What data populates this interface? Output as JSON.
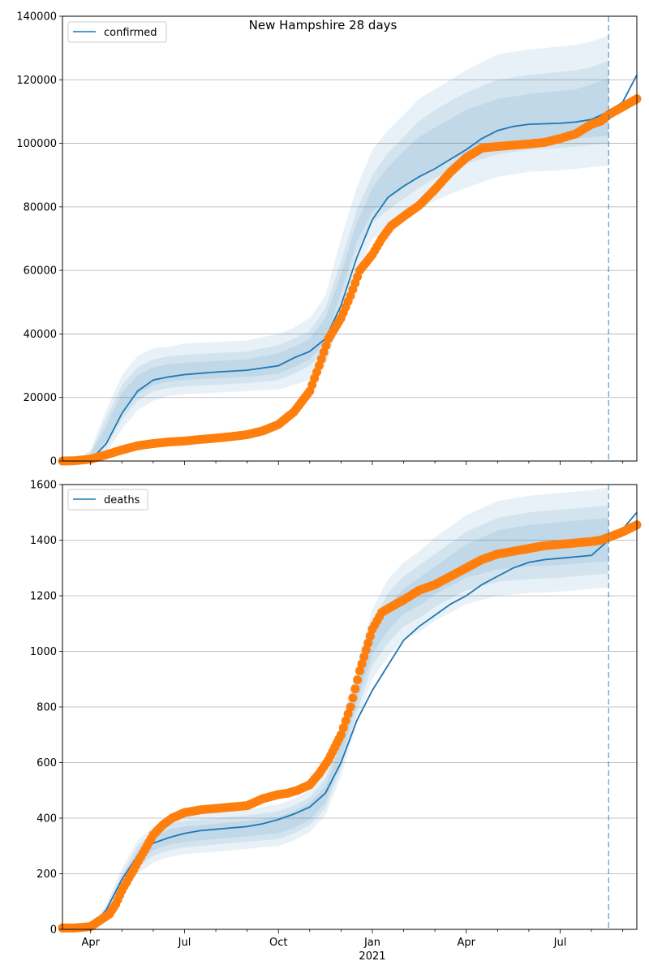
{
  "figure_title": "New Hampshire 28 days",
  "colors": {
    "model": "#1f77b4",
    "observed": "#ff7f0e",
    "band": "#1f77b4",
    "grid": "#b0b0b0",
    "forecast_line": "#1f77b4"
  },
  "x_axis": {
    "ticks": [
      {
        "label": "Apr",
        "x": 1
      },
      {
        "label": "Jul",
        "x": 4
      },
      {
        "label": "Oct",
        "x": 7
      },
      {
        "label": "Jan",
        "x": 10
      },
      {
        "label": "Apr",
        "x": 13
      },
      {
        "label": "Jul",
        "x": 16
      }
    ],
    "year_label": "2021",
    "year_label_x": 10
  },
  "chart_data": [
    {
      "type": "line",
      "legend": [
        "confirmed"
      ],
      "legend_position": "upper-left",
      "xlim": [
        0.1,
        18.45
      ],
      "ylim": [
        0,
        140000
      ],
      "yticks": [
        0,
        20000,
        40000,
        60000,
        80000,
        100000,
        120000,
        140000
      ],
      "grid": "y",
      "forecast_start_x": 17.55,
      "bands": [
        {
          "name": "outer",
          "opacity": 0.1,
          "x": [
            0.1,
            0.5,
            1,
            1.5,
            2,
            2.5,
            3,
            3.5,
            4,
            5,
            6,
            7,
            7.5,
            8,
            8.5,
            9,
            9.5,
            10,
            10.5,
            11,
            11.5,
            12,
            13,
            14,
            15,
            16,
            16.5,
            17,
            17.55
          ],
          "upper": [
            0,
            100,
            3500,
            16000,
            27000,
            33000,
            35500,
            36000,
            37000,
            37500,
            38000,
            40000,
            42000,
            45000,
            52000,
            70000,
            86000,
            98000,
            104000,
            109000,
            114000,
            117000,
            123000,
            128000,
            129500,
            130500,
            131000,
            132000,
            134000
          ],
          "lower": [
            0,
            0,
            0,
            2500,
            10000,
            16000,
            19000,
            20500,
            21000,
            21500,
            22000,
            22500,
            24000,
            25500,
            30000,
            44000,
            59000,
            70000,
            73000,
            76000,
            79000,
            82000,
            86000,
            89500,
            91000,
            91500,
            92000,
            92500,
            93000
          ]
        },
        {
          "name": "middle",
          "opacity": 0.1,
          "x": [
            0.1,
            0.5,
            1,
            1.5,
            2,
            2.5,
            3,
            3.5,
            4,
            5,
            6,
            7,
            7.5,
            8,
            8.5,
            9,
            9.5,
            10,
            10.5,
            11,
            11.5,
            12,
            13,
            14,
            15,
            16,
            16.5,
            17,
            17.55
          ],
          "upper": [
            0,
            50,
            2800,
            13500,
            24000,
            29500,
            32000,
            33000,
            33500,
            34000,
            34500,
            36500,
            38500,
            41000,
            48000,
            63000,
            79000,
            90000,
            97000,
            102000,
            107000,
            110500,
            116000,
            120000,
            121500,
            122500,
            123000,
            124000,
            126000
          ],
          "lower": [
            0,
            0,
            200,
            4500,
            13000,
            19000,
            22000,
            23000,
            23500,
            24000,
            24500,
            25500,
            27500,
            30000,
            35000,
            50000,
            66000,
            75000,
            79000,
            82500,
            86000,
            89000,
            93500,
            96500,
            98000,
            98500,
            99000,
            99500,
            100000
          ]
        },
        {
          "name": "inner",
          "opacity": 0.1,
          "x": [
            0.1,
            0.5,
            1,
            1.5,
            2,
            2.5,
            3,
            3.5,
            4,
            5,
            6,
            7,
            7.5,
            8,
            8.5,
            9,
            9.5,
            10,
            10.5,
            11,
            11.5,
            12,
            13,
            14,
            15,
            16,
            16.5,
            17,
            17.55
          ],
          "upper": [
            0,
            20,
            2200,
            11000,
            21500,
            27000,
            29500,
            30500,
            31000,
            31500,
            32000,
            34000,
            36000,
            38500,
            45000,
            59000,
            75000,
            86000,
            92500,
            97500,
            102000,
            105000,
            110500,
            114000,
            115500,
            116500,
            117000,
            118500,
            120500
          ],
          "lower": [
            0,
            0,
            400,
            6500,
            15500,
            21000,
            24000,
            25000,
            25500,
            26000,
            26500,
            27500,
            29500,
            32000,
            37500,
            53000,
            69000,
            78500,
            82500,
            86000,
            89500,
            92500,
            97000,
            99500,
            100500,
            101000,
            101500,
            102000,
            102500
          ]
        }
      ],
      "series": [
        {
          "name": "confirmed",
          "x": [
            0.1,
            1,
            1.5,
            2,
            2.5,
            3,
            3.5,
            4,
            5,
            6,
            7,
            7.5,
            8,
            8.5,
            9,
            9.5,
            10,
            10.5,
            11,
            11.5,
            12,
            12.5,
            13,
            13.5,
            14,
            14.5,
            15,
            16,
            16.5,
            17,
            17.55,
            18,
            18.45
          ],
          "values": [
            0,
            300,
            5500,
            15000,
            22000,
            25500,
            26500,
            27200,
            28000,
            28600,
            30000,
            32500,
            34500,
            38500,
            49000,
            64000,
            76000,
            83000,
            86500,
            89500,
            92000,
            95000,
            98000,
            101500,
            104000,
            105300,
            106000,
            106300,
            106700,
            107500,
            110000,
            113000,
            121500
          ]
        },
        {
          "name": "observed",
          "x": [
            0.1,
            0.5,
            1,
            1.5,
            2,
            2.5,
            3,
            3.5,
            4,
            4.5,
            5,
            5.5,
            6,
            6.5,
            7,
            7.5,
            8,
            8.3,
            8.6,
            9,
            9.3,
            9.6,
            10,
            10.3,
            10.6,
            11,
            11.5,
            12,
            12.5,
            13,
            13.5,
            14,
            14.5,
            15,
            15.5,
            16,
            16.5,
            17,
            17.3,
            17.55,
            18,
            18.45
          ],
          "values": [
            0,
            100,
            600,
            2000,
            3500,
            4800,
            5500,
            6000,
            6300,
            6800,
            7200,
            7700,
            8300,
            9500,
            11500,
            15500,
            22000,
            30000,
            38500,
            45000,
            52000,
            60000,
            65000,
            70000,
            74000,
            77000,
            80500,
            85500,
            91000,
            95500,
            98500,
            99000,
            99400,
            99800,
            100300,
            101500,
            103000,
            106000,
            107000,
            109000,
            111500,
            114000
          ],
          "marker": "dots"
        }
      ]
    },
    {
      "type": "line",
      "legend": [
        "deaths"
      ],
      "legend_position": "upper-left",
      "xlim": [
        0.1,
        18.45
      ],
      "ylim": [
        0,
        1600
      ],
      "yticks": [
        0,
        200,
        400,
        600,
        800,
        1000,
        1200,
        1400,
        1600
      ],
      "grid": "y",
      "forecast_start_x": 17.55,
      "bands": [
        {
          "name": "outer",
          "opacity": 0.1,
          "x": [
            0.1,
            0.5,
            1,
            1.5,
            2,
            2.5,
            3,
            3.5,
            4,
            5,
            6,
            7,
            7.5,
            8,
            8.5,
            9,
            9.5,
            10,
            10.5,
            11,
            11.5,
            12,
            13,
            14,
            15,
            16,
            16.5,
            17,
            17.55
          ],
          "upper": [
            0,
            2,
            10,
            90,
            220,
            320,
            370,
            400,
            410,
            420,
            430,
            450,
            470,
            500,
            570,
            730,
            950,
            1150,
            1260,
            1320,
            1360,
            1410,
            1490,
            1540,
            1560,
            1570,
            1575,
            1580,
            1590
          ],
          "lower": [
            0,
            0,
            5,
            50,
            140,
            200,
            240,
            260,
            270,
            280,
            290,
            300,
            320,
            350,
            410,
            550,
            740,
            900,
            980,
            1040,
            1070,
            1110,
            1170,
            1200,
            1210,
            1215,
            1220,
            1225,
            1230
          ]
        },
        {
          "name": "middle",
          "opacity": 0.1,
          "x": [
            0.1,
            0.5,
            1,
            1.5,
            2,
            2.5,
            3,
            3.5,
            4,
            5,
            6,
            7,
            7.5,
            8,
            8.5,
            9,
            9.5,
            10,
            10.5,
            11,
            11.5,
            12,
            13,
            14,
            15,
            16,
            16.5,
            17,
            17.55
          ],
          "upper": [
            0,
            1,
            9,
            80,
            200,
            300,
            350,
            380,
            390,
            400,
            410,
            425,
            445,
            475,
            540,
            700,
            910,
            1100,
            1210,
            1270,
            1310,
            1350,
            1430,
            1480,
            1500,
            1510,
            1515,
            1520,
            1525
          ],
          "lower": [
            0,
            0,
            6,
            60,
            160,
            225,
            265,
            285,
            295,
            305,
            315,
            325,
            345,
            375,
            435,
            580,
            780,
            950,
            1030,
            1090,
            1120,
            1160,
            1220,
            1250,
            1260,
            1265,
            1270,
            1275,
            1280
          ]
        },
        {
          "name": "inner",
          "opacity": 0.1,
          "x": [
            0.1,
            0.5,
            1,
            1.5,
            2,
            2.5,
            3,
            3.5,
            4,
            5,
            6,
            7,
            7.5,
            8,
            8.5,
            9,
            9.5,
            10,
            10.5,
            11,
            11.5,
            12,
            13,
            14,
            15,
            16,
            16.5,
            17,
            17.55
          ],
          "upper": [
            0,
            1,
            8,
            72,
            185,
            280,
            330,
            360,
            370,
            380,
            390,
            405,
            425,
            455,
            515,
            670,
            875,
            1060,
            1165,
            1225,
            1265,
            1305,
            1385,
            1435,
            1455,
            1465,
            1470,
            1475,
            1480
          ],
          "lower": [
            0,
            0,
            7,
            66,
            175,
            245,
            285,
            305,
            315,
            325,
            335,
            345,
            365,
            395,
            455,
            610,
            815,
            990,
            1075,
            1135,
            1165,
            1205,
            1265,
            1295,
            1305,
            1310,
            1315,
            1320,
            1325
          ]
        }
      ],
      "series": [
        {
          "name": "deaths",
          "x": [
            0.1,
            0.5,
            1,
            1.5,
            2,
            2.5,
            3,
            3.5,
            4,
            4.5,
            5,
            5.5,
            6,
            6.5,
            7,
            7.5,
            8,
            8.5,
            9,
            9.5,
            10,
            10.5,
            11,
            11.5,
            12,
            12.5,
            13,
            13.5,
            14,
            14.5,
            15,
            15.5,
            16,
            16.5,
            17,
            17.55,
            18,
            18.45
          ],
          "values": [
            0,
            0,
            5,
            70,
            180,
            265,
            310,
            330,
            345,
            355,
            360,
            365,
            370,
            380,
            395,
            415,
            440,
            490,
            600,
            750,
            860,
            950,
            1040,
            1090,
            1130,
            1170,
            1200,
            1240,
            1270,
            1300,
            1320,
            1330,
            1335,
            1340,
            1345,
            1400,
            1440,
            1500
          ]
        },
        {
          "name": "observed",
          "x": [
            0.1,
            0.5,
            1,
            1.2,
            1.4,
            1.6,
            1.8,
            2,
            2.3,
            2.6,
            2.8,
            3,
            3.3,
            3.6,
            4,
            4.5,
            5,
            5.5,
            6,
            6.5,
            7,
            7.3,
            7.6,
            8,
            8.3,
            8.6,
            9,
            9.3,
            9.6,
            10,
            10.3,
            10.6,
            11,
            11.5,
            12,
            12.5,
            13,
            13.5,
            14,
            14.5,
            15,
            15.5,
            16,
            16.5,
            17,
            17.3,
            17.55,
            18,
            18.45
          ],
          "values": [
            5,
            5,
            10,
            25,
            40,
            55,
            90,
            140,
            200,
            260,
            300,
            340,
            375,
            400,
            420,
            430,
            435,
            440,
            445,
            470,
            485,
            490,
            500,
            520,
            560,
            610,
            700,
            800,
            930,
            1080,
            1140,
            1160,
            1185,
            1220,
            1240,
            1270,
            1300,
            1330,
            1350,
            1360,
            1370,
            1380,
            1385,
            1390,
            1395,
            1400,
            1410,
            1430,
            1455
          ],
          "marker": "dots"
        }
      ]
    }
  ]
}
